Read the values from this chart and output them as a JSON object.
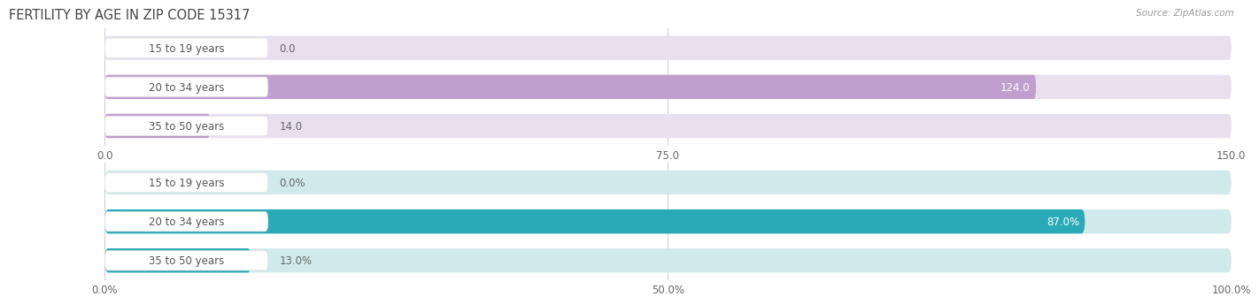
{
  "title": "FERTILITY BY AGE IN ZIP CODE 15317",
  "source": "Source: ZipAtlas.com",
  "top_chart": {
    "categories": [
      "15 to 19 years",
      "20 to 34 years",
      "35 to 50 years"
    ],
    "values": [
      0.0,
      124.0,
      14.0
    ],
    "xlim": [
      0,
      150
    ],
    "xticks": [
      0.0,
      75.0,
      150.0
    ],
    "xtick_labels": [
      "0.0",
      "75.0",
      "150.0"
    ],
    "bar_color": "#c09ece",
    "bar_bg_color": "#e8e0ef"
  },
  "bottom_chart": {
    "categories": [
      "15 to 19 years",
      "20 to 34 years",
      "35 to 50 years"
    ],
    "values": [
      0.0,
      87.0,
      13.0
    ],
    "xlim": [
      0,
      100
    ],
    "xticks": [
      0.0,
      50.0,
      100.0
    ],
    "xtick_labels": [
      "0.0%",
      "50.0%",
      "100.0%"
    ],
    "bar_color": "#29aab6",
    "bar_bg_color": "#d0eaec"
  },
  "label_color": "#666666",
  "title_color": "#444444",
  "source_color": "#999999",
  "cat_label_color": "#555555",
  "bar_height": 0.62,
  "label_fontsize": 8.5,
  "title_fontsize": 10.5,
  "value_fontsize": 8.5,
  "cat_fontsize": 8.5
}
